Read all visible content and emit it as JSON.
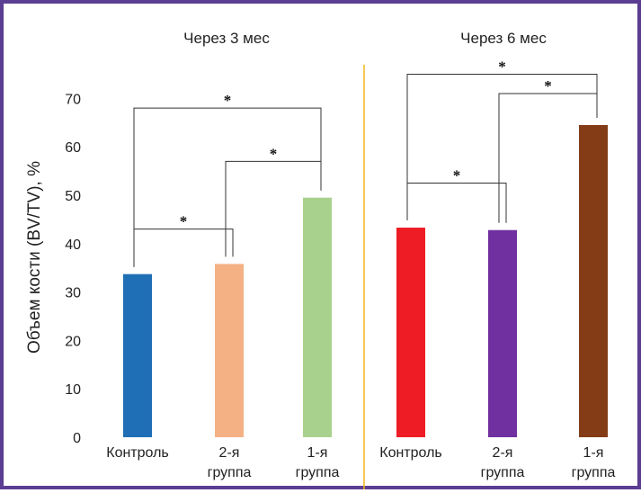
{
  "chart_data": {
    "type": "bar",
    "ylabel": "Объем кости (BV/TV), %",
    "ylim": [
      0,
      70
    ],
    "yticks": [
      0,
      10,
      20,
      30,
      40,
      50,
      60,
      70
    ],
    "grid": false,
    "panels": [
      {
        "title": "Через 3 мес",
        "bars": [
          {
            "label_lines": [
              "Контроль"
            ],
            "value": 33.7,
            "color": "#1f6fb6"
          },
          {
            "label_lines": [
              "2-я",
              "группа"
            ],
            "value": 35.8,
            "color": "#f4b183"
          },
          {
            "label_lines": [
              "1-я",
              "группа"
            ],
            "value": 49.5,
            "color": "#a9d18e"
          }
        ],
        "significance": [
          {
            "from": 0,
            "to": 1,
            "level": 43,
            "mark": "*"
          },
          {
            "from": 1,
            "to": 2,
            "level": 57,
            "mark": "*"
          },
          {
            "from": 0,
            "to": 2,
            "level": 68,
            "mark": "*"
          }
        ]
      },
      {
        "title": "Через 6 мес",
        "bars": [
          {
            "label_lines": [
              "Контроль"
            ],
            "value": 43.3,
            "color": "#ee1c24"
          },
          {
            "label_lines": [
              "2-я",
              "группа"
            ],
            "value": 42.8,
            "color": "#7030a0"
          },
          {
            "label_lines": [
              "1-я",
              "группа"
            ],
            "value": 64.5,
            "color": "#843c17"
          }
        ],
        "significance": [
          {
            "from": 0,
            "to": 1,
            "level": 52.5,
            "mark": "*"
          },
          {
            "from": 1,
            "to": 2,
            "level": 71,
            "mark": "*"
          },
          {
            "from": 0,
            "to": 2,
            "level": 75,
            "mark": "*"
          }
        ]
      }
    ],
    "divider_color": "#f2b51d"
  }
}
